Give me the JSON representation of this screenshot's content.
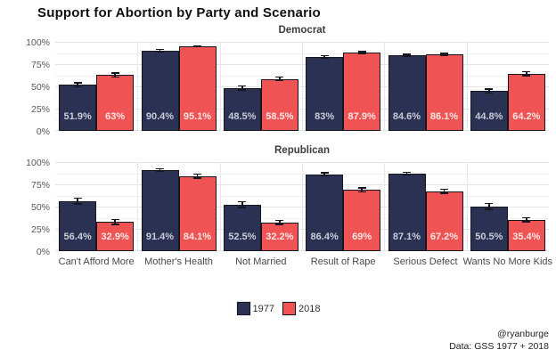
{
  "title": "Support for Abortion by Party and Scenario",
  "footer": {
    "handle": "@ryanburge",
    "source": "Data: GSS 1977 + 2018"
  },
  "chart_data": {
    "type": "bar",
    "categories": [
      "Can't Afford More",
      "Mother's Health",
      "Not Married",
      "Result of Rape",
      "Serious Defect",
      "Wants No More Kids"
    ],
    "y_ticks": [
      "0%",
      "25%",
      "50%",
      "75%",
      "100%"
    ],
    "y_tick_values": [
      0,
      25,
      50,
      75,
      100
    ],
    "y_minor_values": [
      12.5,
      37.5,
      62.5,
      87.5
    ],
    "ylim": [
      0,
      100
    ],
    "grid": true,
    "legend_position": "bottom",
    "legend": [
      {
        "label": "1977",
        "color": "#2a3153"
      },
      {
        "label": "2018",
        "color": "#f05353"
      }
    ],
    "series_colors": {
      "1977": "#2a3153",
      "2018": "#f05353"
    },
    "value_label_colors": {
      "1977": "#c9cdd8",
      "2018": "#fbe6e4"
    },
    "panels": [
      {
        "label": "Democrat",
        "series": [
          {
            "name": "1977",
            "values": [
              51.9,
              90.4,
              48.5,
              83,
              84.6,
              44.8
            ],
            "labels": [
              "51.9%",
              "90.4%",
              "48.5%",
              "83%",
              "84.6%",
              "44.8%"
            ],
            "errors": [
              3,
              2,
              3,
              2.2,
              2,
              3.2
            ]
          },
          {
            "name": "2018",
            "values": [
              63,
              95.1,
              58.5,
              87.9,
              86.1,
              64.2
            ],
            "labels": [
              "63%",
              "95.1%",
              "58.5%",
              "87.9%",
              "86.1%",
              "64.2%"
            ],
            "errors": [
              3,
              1.3,
              2.7,
              1.9,
              1.8,
              2.9
            ]
          }
        ]
      },
      {
        "label": "Republican",
        "series": [
          {
            "name": "1977",
            "values": [
              56.4,
              91.4,
              52.5,
              86.4,
              87.1,
              50.5
            ],
            "labels": [
              "56.4%",
              "91.4%",
              "52.5%",
              "86.4%",
              "87.1%",
              "50.5%"
            ],
            "errors": [
              4,
              2,
              4,
              2.4,
              2.3,
              4
            ]
          },
          {
            "name": "2018",
            "values": [
              32.9,
              84.1,
              32.2,
              69,
              67.2,
              35.4
            ],
            "labels": [
              "32.9%",
              "84.1%",
              "32.2%",
              "69%",
              "67.2%",
              "35.4%"
            ],
            "errors": [
              3.5,
              3,
              3,
              3,
              3,
              3
            ]
          }
        ]
      }
    ]
  }
}
